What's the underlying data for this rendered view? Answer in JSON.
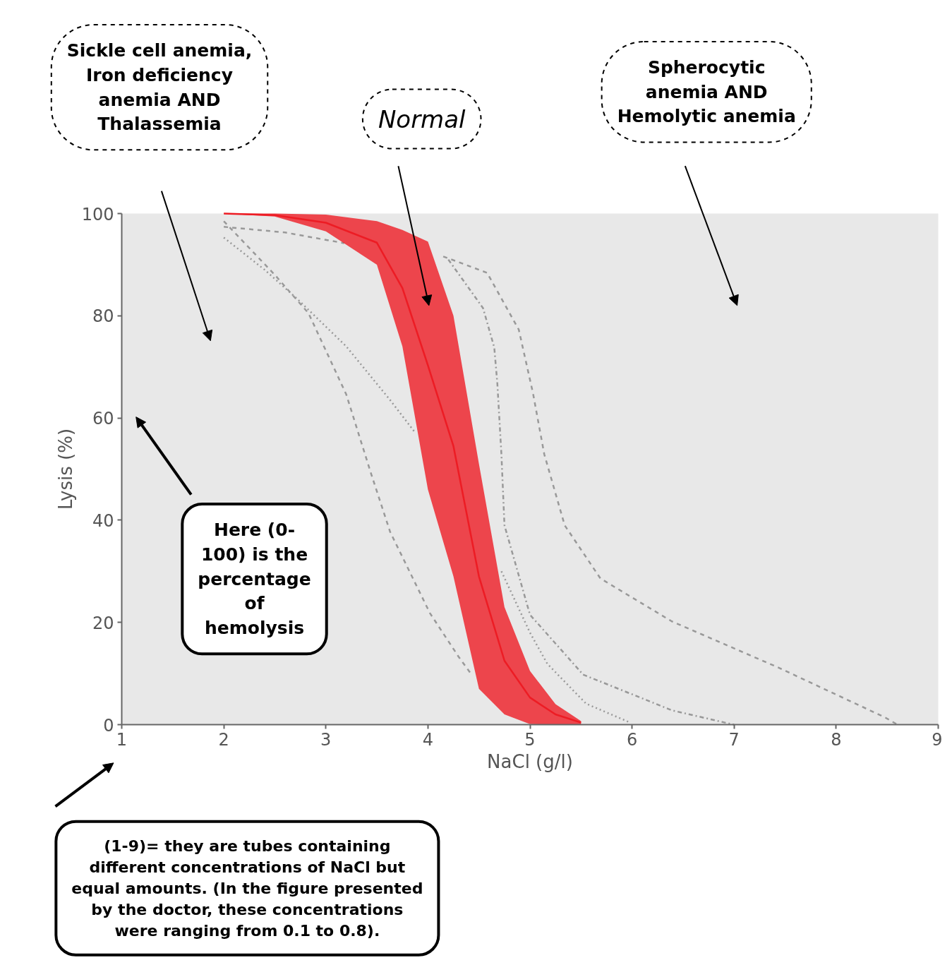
{
  "chart_data": {
    "type": "line",
    "xlabel": "NaCl (g/l)",
    "ylabel": "Lysis (%)",
    "xlim": [
      1,
      9
    ],
    "ylim": [
      0,
      100
    ],
    "xticks": [
      1,
      2,
      3,
      4,
      5,
      6,
      7,
      8,
      9
    ],
    "yticks": [
      0,
      20,
      40,
      60,
      80,
      100
    ],
    "series": [
      {
        "color": "#999999",
        "line_style": "dashed",
        "x": [
          2.0,
          2.5,
          2.83,
          3.2,
          3.44,
          3.63,
          4.02,
          4.3,
          4.42
        ],
        "values": [
          98.5,
          88,
          80.5,
          64.6,
          49.3,
          37.7,
          21.8,
          13.3,
          10
        ]
      },
      {
        "color": "#999999",
        "line_style": "dotted",
        "x": [
          2.0,
          2.4,
          2.73,
          3.2,
          3.63,
          3.88,
          4.3,
          4.72,
          5.0,
          5.17,
          5.55,
          5.97
        ],
        "values": [
          95.3,
          89,
          83.1,
          74,
          63.5,
          57,
          null,
          30,
          18,
          11.9,
          4.1,
          0.5
        ]
      },
      {
        "color": "#999999",
        "line_style": "dashdot",
        "x": [
          4.2,
          4.54,
          4.65,
          4.68,
          4.72,
          4.75,
          5.0,
          5.52,
          6.39,
          6.91,
          7.0
        ],
        "values": [
          91,
          81.5,
          73.8,
          66.8,
          52.9,
          39,
          21.5,
          9.8,
          2.8,
          0.4,
          0
        ]
      },
      {
        "color": "#999999",
        "line_style": "dashed",
        "x": [
          2.0,
          2.6,
          3.18,
          3.7,
          4.15,
          4.3,
          4.58,
          4.89,
          5.03,
          5.14,
          5.34,
          5.69,
          6.39,
          7.43,
          8.48,
          8.6
        ],
        "values": [
          97.4,
          96.3,
          94.2,
          null,
          91.6,
          90.5,
          88.4,
          77.3,
          64.8,
          52.9,
          39,
          28.6,
          20.2,
          11.2,
          1.4,
          0
        ]
      },
      {
        "color": "#ed1c24",
        "x": [
          2.0,
          2.5,
          3.0,
          3.5,
          3.75,
          4.0,
          4.25,
          4.5,
          4.75,
          5.0,
          5.25,
          5.5
        ],
        "values": [
          100,
          99.7,
          98.2,
          94.3,
          85.4,
          70.3,
          54.5,
          29,
          12.5,
          5.3,
          2,
          0.4
        ],
        "lower": [
          100,
          99.4,
          96.5,
          90,
          74,
          46,
          29,
          7,
          2,
          0.1,
          0,
          0
        ],
        "upper": [
          100,
          100,
          99.8,
          98.5,
          96.8,
          94.5,
          80,
          51,
          23,
          10.5,
          4,
          0.7
        ]
      }
    ],
    "annotations": [
      "Sickle cell anemia,\nIron deficiency\nanemia AND\nThalassemia",
      "Normal",
      "Spherocytic\nanemia AND\nHemolytic anemia",
      "Here (0-\n100) is the\npercentage\nof\nhemolysis",
      "(1-9)= they are tubes containing\ndifferent concentrations of NaCl but\nequal amounts. (In the figure presented\nby the doctor, these concentrations\nwere ranging from 0.1 to 0.8)."
    ]
  }
}
